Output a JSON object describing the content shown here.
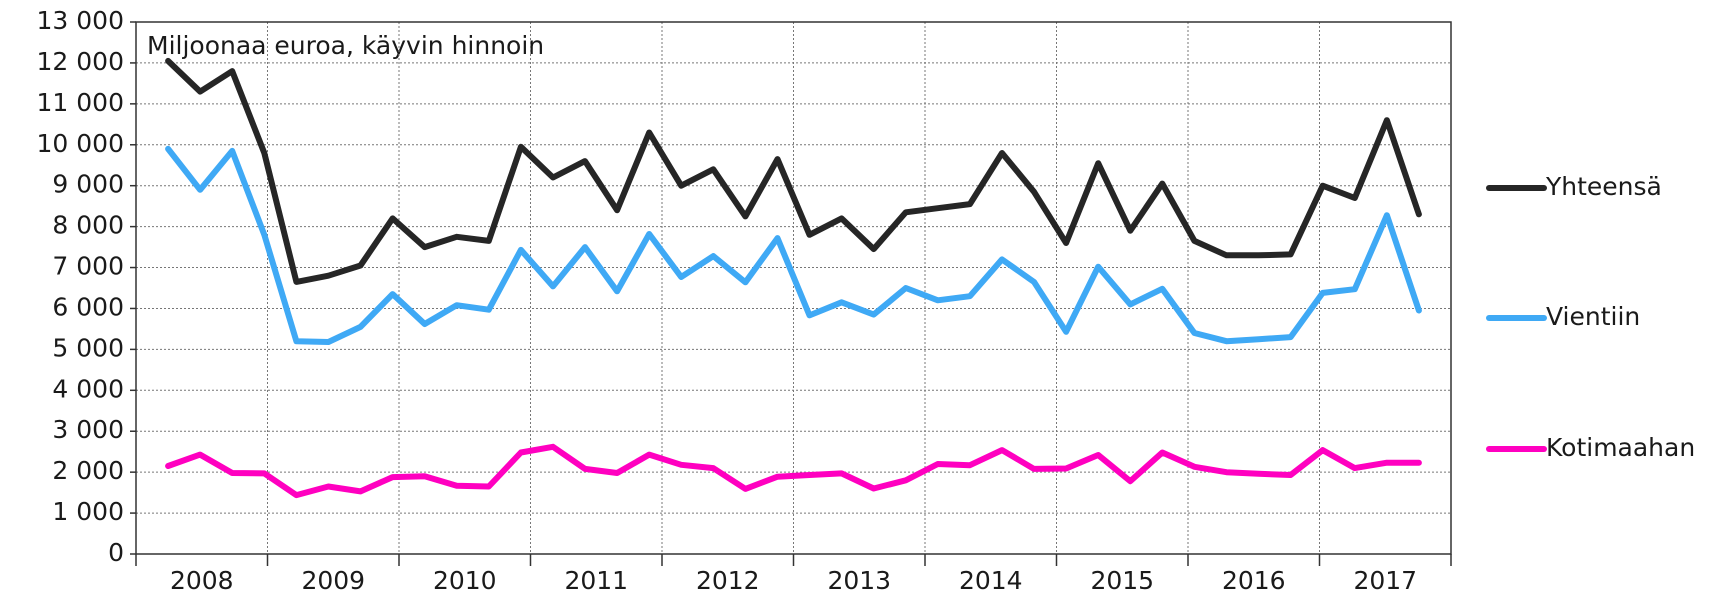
{
  "chart_data": {
    "type": "line",
    "annotation": "Miljoonaa euroa, käyvin hinnoin",
    "groups": [
      "2008",
      "2009",
      "2010",
      "2011",
      "2012",
      "2013",
      "2014",
      "2015",
      "2016",
      "2017"
    ],
    "series": [
      {
        "name": "Yhteensä",
        "color": "#262626",
        "values": [
          12050,
          11300,
          11800,
          9800,
          6650,
          6800,
          7050,
          8200,
          7500,
          7750,
          7650,
          9950,
          9200,
          9600,
          8400,
          10300,
          9000,
          9400,
          8250,
          9650,
          7800,
          8200,
          7450,
          8350,
          8450,
          8550,
          9800,
          8850,
          7600,
          9550,
          7900,
          9050,
          7650,
          7300,
          7300,
          7320,
          9000,
          8700,
          10600,
          8300
        ]
      },
      {
        "name": "Vientiin",
        "color": "#3fa9f5",
        "values": [
          9900,
          8900,
          9850,
          7800,
          5200,
          5180,
          5550,
          6350,
          5620,
          6080,
          5970,
          7430,
          6540,
          7500,
          6420,
          7820,
          6770,
          7280,
          6640,
          7720,
          5830,
          6150,
          5850,
          6500,
          6200,
          6300,
          7200,
          6650,
          5430,
          7020,
          6100,
          6480,
          5400,
          5200,
          5250,
          5300,
          6380,
          6470,
          8280,
          5950
        ]
      },
      {
        "name": "Kotimaahan",
        "color": "#ff00c0",
        "values": [
          2150,
          2430,
          1980,
          1970,
          1440,
          1650,
          1530,
          1880,
          1900,
          1670,
          1650,
          2480,
          2620,
          2080,
          1980,
          2430,
          2180,
          2100,
          1590,
          1890,
          1930,
          1970,
          1600,
          1800,
          2200,
          2170,
          2540,
          2080,
          2090,
          2420,
          1780,
          2480,
          2130,
          2000,
          1960,
          1930,
          2540,
          2100,
          2230,
          2230
        ]
      }
    ],
    "ylim": [
      0,
      13000
    ],
    "yticks": [
      0,
      {
        "value": 1000,
        "label": "1 000"
      },
      {
        "value": 2000,
        "label": "2 000"
      },
      {
        "value": 3000,
        "label": "3 000"
      },
      {
        "value": 4000,
        "label": "4 000"
      },
      {
        "value": 5000,
        "label": "5 000"
      },
      {
        "value": 6000,
        "label": "6 000"
      },
      {
        "value": 7000,
        "label": "7 000"
      },
      {
        "value": 8000,
        "label": "8 000"
      },
      {
        "value": 9000,
        "label": "9 000"
      },
      {
        "value": 10000,
        "label": "10 000"
      },
      {
        "value": 11000,
        "label": "11 000"
      },
      {
        "value": 12000,
        "label": "12 000"
      },
      {
        "value": 13000,
        "label": "13 000"
      }
    ],
    "grid": true
  }
}
